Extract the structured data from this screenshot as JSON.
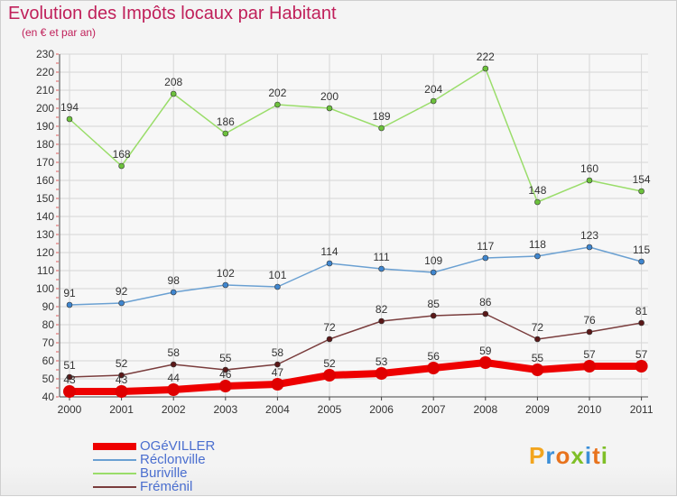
{
  "header": {
    "title": "Evolution des Impôts locaux par Habitant",
    "subtitle": "(en € et par an)"
  },
  "brand": {
    "letters": [
      "P",
      "r",
      "o",
      "x",
      "i",
      "t",
      "i"
    ],
    "colors": [
      "#f2a51f",
      "#3c8fd8",
      "#e8731d",
      "#7fbf27",
      "#3c8fd8",
      "#e8731d",
      "#7fbf27"
    ]
  },
  "chart_data": {
    "type": "line",
    "title": "Evolution des Impôts locaux par Habitant",
    "subtitle": "(en € et par an)",
    "xlabel": "",
    "ylabel": "",
    "x": [
      "2000",
      "2001",
      "2002",
      "2003",
      "2004",
      "2005",
      "2006",
      "2007",
      "2008",
      "2009",
      "2010",
      "2011"
    ],
    "ylim": [
      40,
      230
    ],
    "yticks": [
      40,
      50,
      60,
      70,
      80,
      90,
      100,
      110,
      120,
      130,
      140,
      150,
      160,
      170,
      180,
      190,
      200,
      210,
      220,
      230
    ],
    "grid": true,
    "legend_position": "bottom-left",
    "series": [
      {
        "name": "OGéVILLER",
        "color": "#ee0000",
        "point_color": "#e00000",
        "emphasis": true,
        "values": [
          43,
          43,
          44,
          46,
          47,
          52,
          53,
          56,
          59,
          55,
          57,
          57
        ]
      },
      {
        "name": "Réclonville",
        "color": "#6aa0d2",
        "point_color": "#3f86cf",
        "emphasis": false,
        "values": [
          91,
          92,
          98,
          102,
          101,
          114,
          111,
          109,
          117,
          118,
          123,
          115
        ]
      },
      {
        "name": "Buriville",
        "color": "#9add6a",
        "point_color": "#6cc13c",
        "emphasis": false,
        "values": [
          194,
          168,
          208,
          186,
          202,
          200,
          189,
          204,
          222,
          148,
          160,
          154
        ]
      },
      {
        "name": "Fréménil",
        "color": "#7a3d3d",
        "point_color": "#5a1818",
        "emphasis": false,
        "values": [
          51,
          52,
          58,
          55,
          58,
          72,
          82,
          85,
          86,
          72,
          76,
          81
        ]
      }
    ]
  }
}
